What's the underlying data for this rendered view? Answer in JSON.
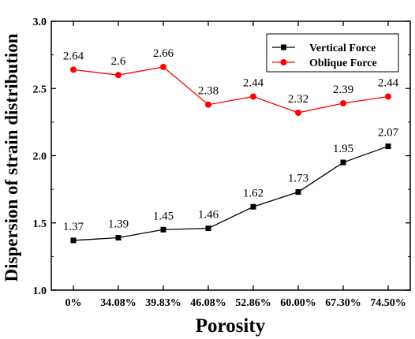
{
  "chart_data": {
    "type": "line",
    "title": "",
    "xlabel": "Porosity",
    "ylabel": "Dispersion of strain distribution",
    "categories": [
      "0%",
      "34.08%",
      "39.83%",
      "46.08%",
      "52.86%",
      "60.00%",
      "67.30%",
      "74.50%"
    ],
    "ylim": [
      1.0,
      3.0
    ],
    "yticks": [
      "1.0",
      "1.5",
      "2.0",
      "2.5",
      "3.0"
    ],
    "grid": false,
    "legend_position": "top-right",
    "series": [
      {
        "name": "Vertical Force",
        "color": "#000000",
        "marker": "square",
        "values": [
          1.37,
          1.39,
          1.45,
          1.46,
          1.62,
          1.73,
          1.95,
          2.07
        ],
        "labels": [
          "1.37",
          "1.39",
          "1.45",
          "1.46",
          "1.62",
          "1.73",
          "1.95",
          "2.07"
        ]
      },
      {
        "name": "Oblique Force",
        "color": "#ff0000",
        "marker": "circle",
        "values": [
          2.64,
          2.6,
          2.66,
          2.38,
          2.44,
          2.32,
          2.39,
          2.44
        ],
        "labels": [
          "2.64",
          "2.6",
          "2.66",
          "2.38",
          "2.44",
          "2.32",
          "2.39",
          "2.44"
        ]
      }
    ]
  }
}
